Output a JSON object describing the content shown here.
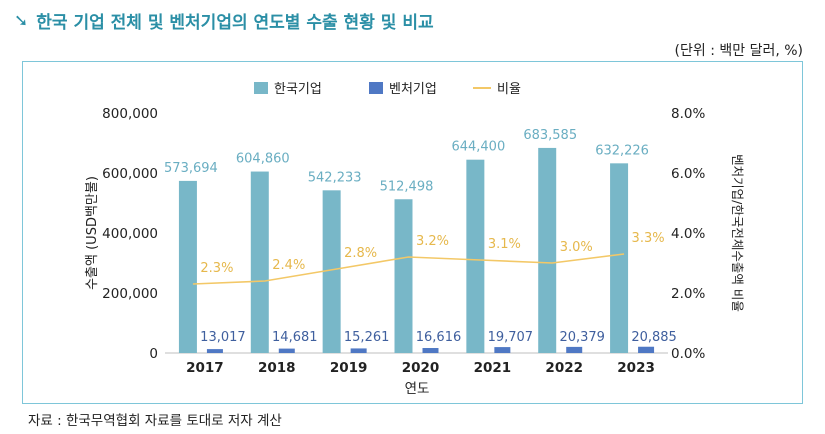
{
  "header": {
    "title": "한국 기업 전체 및 벤처기업의 연도별 수출 현황 및 비교",
    "unit": "(단위 : 백만 달러, %)"
  },
  "footer": {
    "source": "자료 : 한국무역협회 자료를 토대로 저자 계산"
  },
  "colors": {
    "korea": "#78b7c8",
    "venture": "#4f78c4",
    "ratio": "#f3c867",
    "accent": "#2b8fa6"
  },
  "chart_data": {
    "type": "bar",
    "title": "한국 기업 전체 및 벤처기업의 연도별 수출 현황 및 비교",
    "categories": [
      "2017",
      "2018",
      "2019",
      "2020",
      "2021",
      "2022",
      "2023"
    ],
    "series": [
      {
        "name": "한국기업",
        "type": "bar",
        "axis": "left",
        "values": [
          573694,
          604860,
          542233,
          512498,
          644400,
          683585,
          632226
        ],
        "labels": [
          "573,694",
          "604,860",
          "542,233",
          "512,498",
          "644,400",
          "683,585",
          "632,226"
        ]
      },
      {
        "name": "벤처기업",
        "type": "bar",
        "axis": "left",
        "values": [
          13017,
          14681,
          15261,
          16616,
          19707,
          20379,
          20885
        ],
        "labels": [
          "13,017",
          "14,681",
          "15,261",
          "16,616",
          "19,707",
          "20,379",
          "20,885"
        ]
      },
      {
        "name": "비율",
        "type": "line",
        "axis": "right",
        "values": [
          2.3,
          2.4,
          2.8,
          3.2,
          3.1,
          3.0,
          3.3
        ],
        "labels": [
          "2.3%",
          "2.4%",
          "2.8%",
          "3.2%",
          "3.1%",
          "3.0%",
          "3.3%"
        ]
      }
    ],
    "xlabel": "연도",
    "ylabel": "수출액 (USD백만불)",
    "y2label": "벤처기업/한국전체수출액 비율",
    "ylim": [
      0,
      800000
    ],
    "y2lim": [
      0,
      8
    ],
    "yticks": [
      "0",
      "200,000",
      "400,000",
      "600,000",
      "800,000"
    ],
    "y2ticks": [
      "0.0%",
      "2.0%",
      "4.0%",
      "6.0%",
      "8.0%"
    ],
    "legend_position": "top-center"
  }
}
